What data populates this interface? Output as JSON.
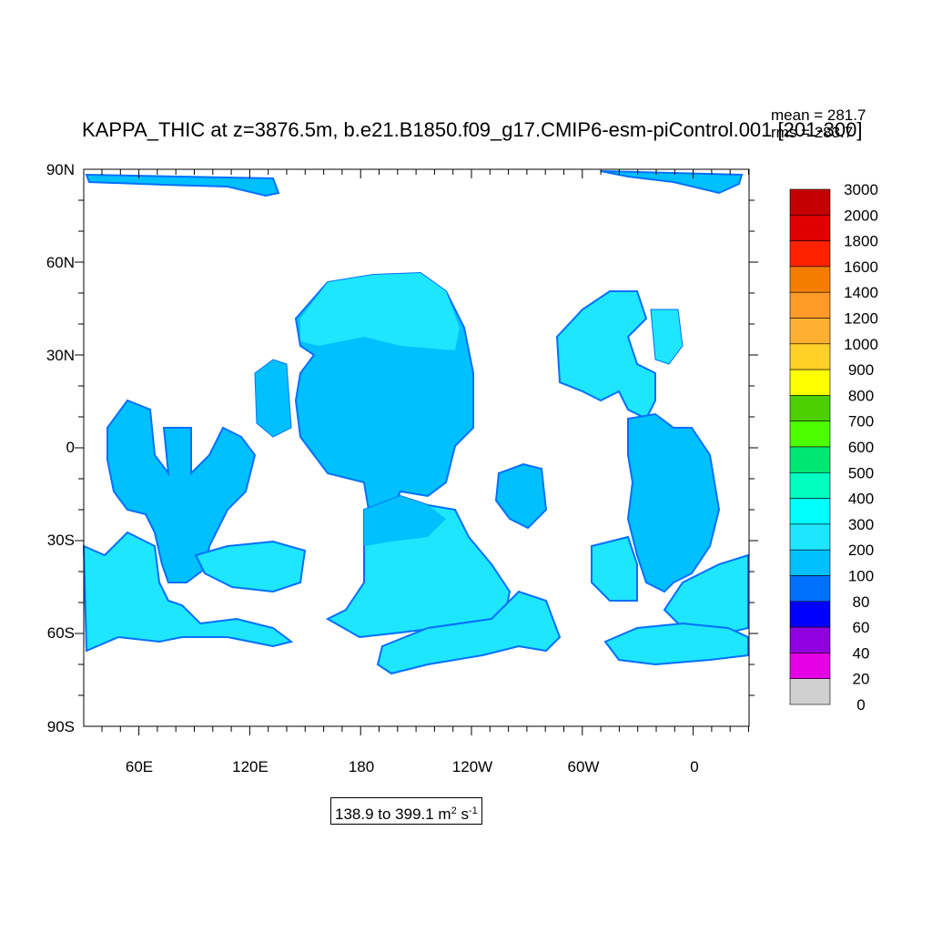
{
  "title": "KAPPA_THIC at z=3876.5m, b.e21.B1850.f09_g17.CMIP6-esm-piControl.001 [201-300]",
  "stats": {
    "mean": "mean = 281.7",
    "rms": "rms = 283.7"
  },
  "range": {
    "text": "138.9 to 399.1 m",
    "unit_exp1": "2",
    "unit_mid": " s",
    "unit_exp2": "-1"
  },
  "chart_data": {
    "type": "heatmap",
    "variable": "KAPPA_THIC",
    "projection": "cylindrical-equidistant",
    "x_ticks": [
      "60E",
      "120E",
      "180",
      "120W",
      "60W",
      "0"
    ],
    "y_ticks": [
      "90N",
      "60N",
      "30N",
      "0",
      "30S",
      "60S",
      "90S"
    ],
    "colorbar": {
      "labels": [
        "3000",
        "2000",
        "1800",
        "1600",
        "1400",
        "1200",
        "1000",
        "900",
        "800",
        "700",
        "600",
        "500",
        "400",
        "300",
        "200",
        "100",
        "80",
        "60",
        "40",
        "20",
        "0"
      ],
      "colors": [
        "#c40000",
        "#e10000",
        "#ff2200",
        "#f47d00",
        "#ff9a28",
        "#ffb030",
        "#ffd028",
        "#ffff00",
        "#4cd000",
        "#4cff00",
        "#00e672",
        "#00ffc0",
        "#00ffff",
        "#1ee6ff",
        "#00c0ff",
        "#0070ff",
        "#0000ff",
        "#9000e0",
        "#e600e6",
        "#d0d0d0",
        "#707070"
      ]
    },
    "ocean_colors": {
      "light": "#1ee6ff",
      "mid": "#00c0ff",
      "deep": "#0070ff"
    }
  }
}
